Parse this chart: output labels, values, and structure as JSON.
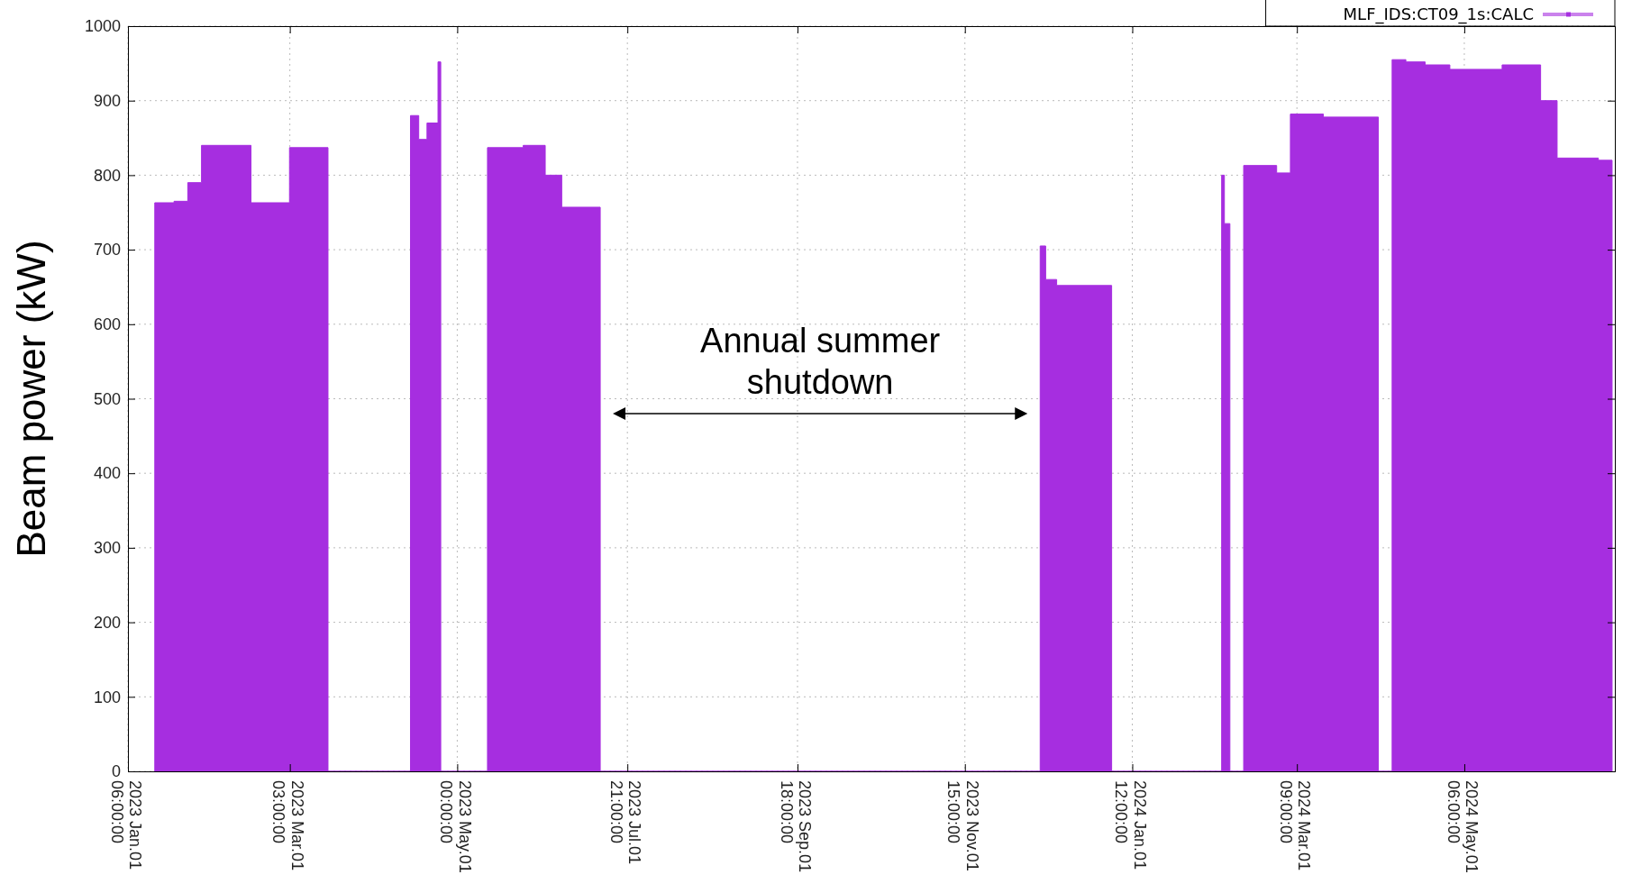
{
  "chart_data": {
    "type": "area",
    "ylabel": "Beam power (kW)",
    "xlim": [
      "2023-01-01T06:00",
      "2024-06-25"
    ],
    "xticks": [
      {
        "value": "2023-01-01T06:00",
        "label": "2023 Jan.01 06:00:00"
      },
      {
        "value": "2023-03-01T03:00",
        "label": "2023 Mar.01 03:00:00"
      },
      {
        "value": "2023-05-01T00:00",
        "label": "2023 May.01 00:00:00"
      },
      {
        "value": "2023-07-01T21:00",
        "label": "2023 Jul.01 21:00:00"
      },
      {
        "value": "2023-09-01T18:00",
        "label": "2023 Sep.01 18:00:00"
      },
      {
        "value": "2023-11-01T15:00",
        "label": "2023 Nov.01 15:00:00"
      },
      {
        "value": "2024-01-01T12:00",
        "label": "2024 Jan.01 12:00:00"
      },
      {
        "value": "2024-03-01T09:00",
        "label": "2024 Mar.01 09:00:00"
      },
      {
        "value": "2024-05-01T06:00",
        "label": "2024 May.01 06:00:00"
      }
    ],
    "ylim": [
      0,
      1000
    ],
    "yticks": [
      0,
      100,
      200,
      300,
      400,
      500,
      600,
      700,
      800,
      900,
      1000
    ],
    "grid": true,
    "legend": "top right",
    "annotations": [
      "Annual summer shutdown"
    ],
    "series": [
      {
        "name": "MLF_IDS:CT09_1s:CALC",
        "color": "#a62ee0",
        "x": [
          "2023-01-11",
          "2023-01-11",
          "2023-01-18",
          "2023-01-18",
          "2023-01-23",
          "2023-01-23",
          "2023-01-28",
          "2023-01-28",
          "2023-02-15",
          "2023-02-15",
          "2023-03-01",
          "2023-03-01",
          "2023-03-15",
          "2023-03-15",
          "2023-04-14",
          "2023-04-14",
          "2023-04-17",
          "2023-04-17",
          "2023-04-20",
          "2023-04-20",
          "2023-04-24",
          "2023-04-24",
          "2023-04-25",
          "2023-04-25",
          "2023-05-12",
          "2023-05-12",
          "2023-05-25",
          "2023-05-25",
          "2023-06-02",
          "2023-06-02",
          "2023-06-08",
          "2023-06-08",
          "2023-06-22",
          "2023-06-22",
          "2023-11-29",
          "2023-11-29",
          "2023-12-01",
          "2023-12-01",
          "2023-12-05",
          "2023-12-05",
          "2023-12-25",
          "2023-12-25",
          "2024-02-03",
          "2024-02-03",
          "2024-02-04",
          "2024-02-04",
          "2024-02-06",
          "2024-02-06",
          "2024-02-11",
          "2024-02-11",
          "2024-02-23",
          "2024-02-23",
          "2024-02-28",
          "2024-02-28",
          "2024-03-11",
          "2024-03-11",
          "2024-03-31",
          "2024-03-31",
          "2024-04-05",
          "2024-04-05",
          "2024-04-10",
          "2024-04-10",
          "2024-04-17",
          "2024-04-17",
          "2024-04-26",
          "2024-04-26",
          "2024-05-15",
          "2024-05-15",
          "2024-05-29",
          "2024-05-29",
          "2024-06-04",
          "2024-06-04",
          "2024-06-19",
          "2024-06-19",
          "2024-06-24",
          "2024-06-24"
        ],
        "values": [
          0,
          763,
          763,
          765,
          765,
          790,
          790,
          840,
          840,
          763,
          763,
          837,
          837,
          0,
          0,
          880,
          880,
          848,
          848,
          870,
          870,
          952,
          952,
          0,
          0,
          837,
          837,
          840,
          840,
          800,
          800,
          757,
          757,
          0,
          0,
          705,
          705,
          660,
          660,
          652,
          652,
          0,
          0,
          800,
          800,
          735,
          735,
          0,
          0,
          813,
          813,
          803,
          803,
          882,
          882,
          878,
          878,
          0,
          0,
          955,
          955,
          952,
          952,
          948,
          948,
          942,
          942,
          948,
          948,
          900,
          900,
          823,
          823,
          820,
          820,
          0
        ]
      }
    ]
  }
}
